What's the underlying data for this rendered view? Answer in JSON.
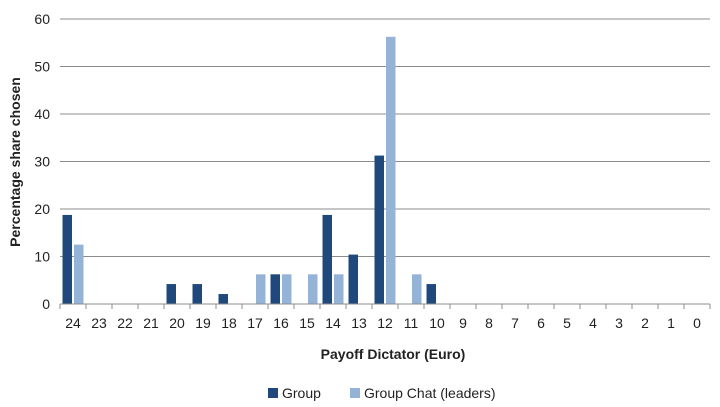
{
  "chart_data": {
    "type": "bar",
    "title": "",
    "xlabel": "Payoff Dictator (Euro)",
    "ylabel": "Percentage share chosen",
    "ylim": [
      0,
      60
    ],
    "yticks": [
      0,
      10,
      20,
      30,
      40,
      50,
      60
    ],
    "grid": true,
    "legend_position": "bottom",
    "categories": [
      "24",
      "23",
      "22",
      "21",
      "20",
      "19",
      "18",
      "17",
      "16",
      "15",
      "14",
      "13",
      "12",
      "11",
      "10",
      "9",
      "8",
      "7",
      "6",
      "5",
      "4",
      "3",
      "2",
      "1",
      "0"
    ],
    "series": [
      {
        "name": "Group",
        "color": "#1f497d",
        "values": [
          18.75,
          0,
          0,
          0,
          4.2,
          4.2,
          2.1,
          0,
          6.25,
          0,
          18.75,
          10.4,
          31.25,
          0,
          4.2,
          0,
          0,
          0,
          0,
          0,
          0,
          0,
          0,
          0,
          0
        ]
      },
      {
        "name": "Group Chat (leaders)",
        "color": "#95b3d7",
        "values": [
          12.5,
          0,
          0,
          0,
          0,
          0,
          0,
          6.25,
          6.25,
          6.25,
          6.25,
          0,
          56.25,
          6.25,
          0,
          0,
          0,
          0,
          0,
          0,
          0,
          0,
          0,
          0,
          0
        ]
      }
    ]
  }
}
